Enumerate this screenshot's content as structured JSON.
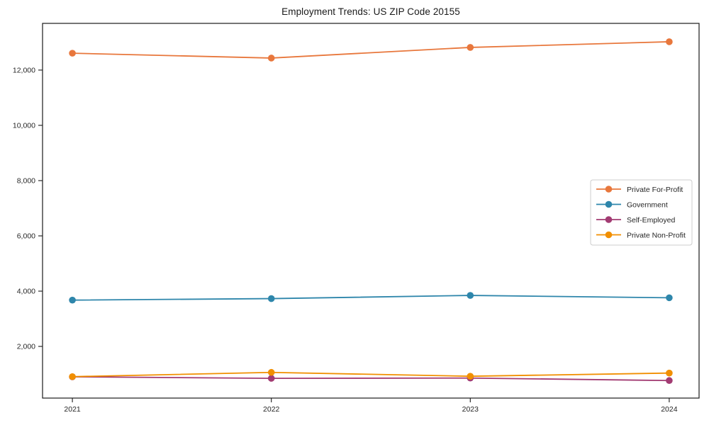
{
  "figure": {
    "background": "#ffffff",
    "spine_color": "#1a1a1a",
    "tick_label_color": "#262626",
    "legend_border_color": "#cccccc"
  },
  "chart_data": {
    "type": "line",
    "title": "Employment Trends: US ZIP Code 20155",
    "xlabel": "",
    "ylabel": "",
    "x": [
      2021,
      2022,
      2023,
      2024
    ],
    "x_tick_labels": [
      "2021",
      "2022",
      "2023",
      "2024"
    ],
    "y_ticks": [
      2000,
      4000,
      6000,
      8000,
      10000,
      12000
    ],
    "y_tick_labels": [
      "2,000",
      "4,000",
      "6,000",
      "8,000",
      "10,000",
      "12,000"
    ],
    "xlim": [
      2020.85,
      2024.15
    ],
    "ylim": [
      130,
      13690
    ],
    "grid": false,
    "legend_position": "center right",
    "marker": "circle",
    "series": [
      {
        "name": "Private For-Profit",
        "color": "#E8773C",
        "values": [
          12610,
          12435,
          12820,
          13025
        ]
      },
      {
        "name": "Government",
        "color": "#2E86AB",
        "values": [
          3675,
          3730,
          3845,
          3760
        ]
      },
      {
        "name": "Self-Employed",
        "color": "#A23B72",
        "values": [
          900,
          845,
          855,
          765
        ]
      },
      {
        "name": "Private Non-Profit",
        "color": "#F18F01",
        "values": [
          905,
          1060,
          920,
          1035
        ]
      }
    ]
  }
}
